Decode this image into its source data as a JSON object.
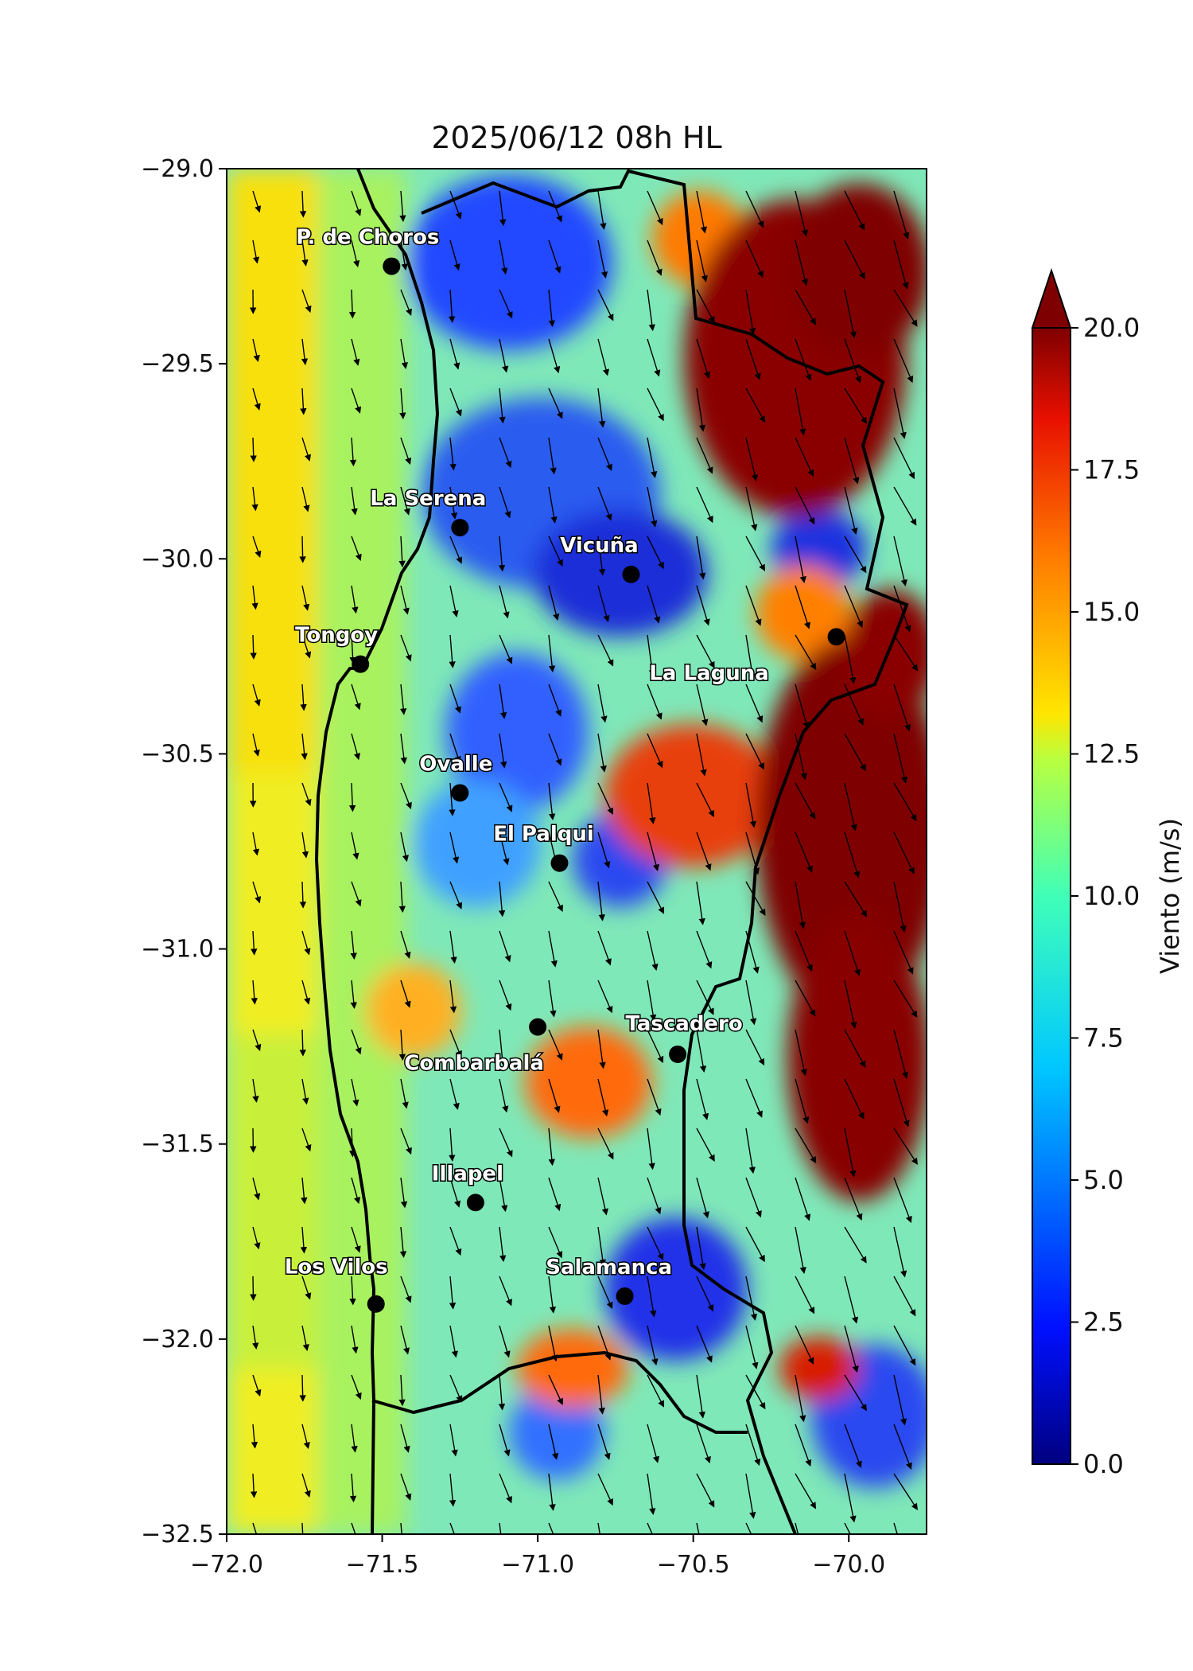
{
  "title": "2025/06/12 08h HL",
  "x_ticks": [
    "−72.0",
    "−71.5",
    "−71.0",
    "−70.5",
    "−70.0"
  ],
  "y_ticks": [
    "−29.0",
    "−29.5",
    "−30.0",
    "−30.5",
    "−31.0",
    "−31.5",
    "−32.0",
    "−32.5"
  ],
  "colorbar": {
    "label": "Viento (m/s)",
    "ticks": [
      "0.0",
      "2.5",
      "5.0",
      "7.5",
      "10.0",
      "12.5",
      "15.0",
      "17.5",
      "20.0"
    ],
    "min": 0,
    "max": 20,
    "extend": "max"
  },
  "extent": {
    "lon": [
      -72.0,
      -69.75
    ],
    "lat": [
      -32.5,
      -29.0
    ]
  },
  "colors": {
    "ocean_strong": "#f2e60c",
    "low_wind": "#1f3fe0",
    "mid_wind": "#59f0e0",
    "high_wind": "#e83a10",
    "extreme_wind": "#7f0000",
    "coast": "#000000"
  },
  "cities": [
    {
      "name": "P. de Choros",
      "lon": -71.47,
      "lat": -29.25
    },
    {
      "name": "La Serena",
      "lon": -71.25,
      "lat": -29.92
    },
    {
      "name": "Vicuña",
      "lon": -70.7,
      "lat": -30.04
    },
    {
      "name": "Tongoy",
      "lon": -71.57,
      "lat": -30.27
    },
    {
      "name": "La Laguna",
      "lon": -70.04,
      "lat": -30.2
    },
    {
      "name": "Ovalle",
      "lon": -71.25,
      "lat": -30.6
    },
    {
      "name": "El Palqui",
      "lon": -70.93,
      "lat": -30.78
    },
    {
      "name": "Tascadero",
      "lon": -70.55,
      "lat": -31.27
    },
    {
      "name": "Combarbalá",
      "lon": -71.0,
      "lat": -31.2
    },
    {
      "name": "Illapel",
      "lon": -71.2,
      "lat": -31.65
    },
    {
      "name": "Los Vilos",
      "lon": -71.52,
      "lat": -31.91
    },
    {
      "name": "Salamanca",
      "lon": -70.72,
      "lat": -31.89
    }
  ]
}
